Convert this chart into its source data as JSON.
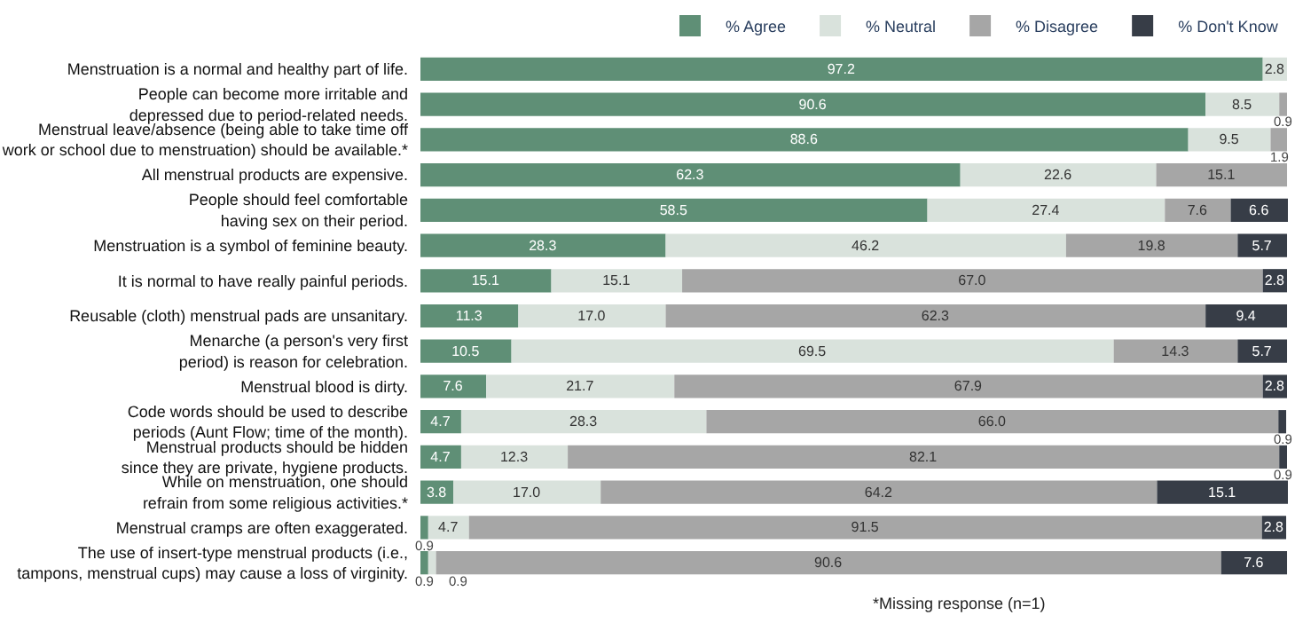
{
  "chart_data": {
    "type": "bar",
    "orientation": "horizontal",
    "stacked": true,
    "legend": "top right",
    "categories": [
      "Menstruation is a normal and healthy part of life.",
      "People can become more irritable and\ndepressed due to period-related needs.",
      "Menstrual leave/absence (being able to take time off\nwork or school due to menstruation) should be available.*",
      "All menstrual products are expensive.",
      "People should feel comfortable\nhaving sex on their period.",
      "Menstruation is a symbol of feminine beauty.",
      "It is normal to have really painful periods.",
      "Reusable (cloth) menstrual pads are unsanitary.",
      "Menarche (a person's very first\nperiod) is reason for celebration.",
      "Menstrual blood is dirty.",
      "Code words should be used to describe\nperiods (Aunt Flow; time of the month).",
      "Menstrual products should be hidden\nsince they are private, hygiene products.",
      "While on menstruation, one should\nrefrain from some religious activities.*",
      "Menstrual cramps are often exaggerated.",
      "The use of insert-type menstrual products (i.e.,\ntampons, menstrual cups) may cause a loss of virginity."
    ],
    "series": [
      {
        "name": "% Agree",
        "color": "#5f8f76",
        "values": [
          97.2,
          90.6,
          88.6,
          62.3,
          58.5,
          28.3,
          15.1,
          11.3,
          10.5,
          7.6,
          4.7,
          4.7,
          3.8,
          0.9,
          0.9
        ],
        "value_labels": [
          "97.2",
          "90.6",
          "88.6",
          "62.3",
          "58.5",
          "28.3",
          "15.1",
          "11.3",
          "10.5",
          "7.6",
          "4.7",
          "4.7",
          "3.8",
          "0.9",
          "0.9"
        ]
      },
      {
        "name": "% Neutral",
        "color": "#d9e2dc",
        "values": [
          2.8,
          8.5,
          9.5,
          22.6,
          27.4,
          46.2,
          15.1,
          17.0,
          69.5,
          21.7,
          28.3,
          12.3,
          17.0,
          4.7,
          0.9
        ],
        "value_labels": [
          "2.8",
          "8.5",
          "9.5",
          "22.6",
          "27.4",
          "46.2",
          "15.1",
          "17.0",
          "69.5",
          "21.7",
          "28.3",
          "12.3",
          "17.0",
          "4.7",
          "0.9"
        ]
      },
      {
        "name": "% Disagree",
        "color": "#a6a6a6",
        "values": [
          null,
          0.9,
          1.9,
          15.1,
          7.6,
          19.8,
          67.0,
          62.3,
          14.3,
          67.9,
          66.0,
          82.1,
          64.2,
          91.5,
          90.6
        ],
        "value_labels": [
          null,
          "0.9",
          "1.9",
          "15.1",
          "7.6",
          "19.8",
          "67.0",
          "62.3",
          "14.3",
          "67.9",
          "66.0",
          "82.1",
          "64.2",
          "91.5",
          "90.6"
        ]
      },
      {
        "name": "% Don't Know",
        "color": "#373d47",
        "values": [
          null,
          null,
          null,
          null,
          6.6,
          5.7,
          2.8,
          9.4,
          5.7,
          2.8,
          0.9,
          0.9,
          15.1,
          2.8,
          7.6
        ],
        "value_labels": [
          null,
          null,
          null,
          null,
          "6.6",
          "5.7",
          "2.8",
          "9.4",
          "5.7",
          "2.8",
          "0.9",
          "0.9",
          "15.1",
          "2.8",
          "7.6"
        ]
      }
    ],
    "annotations": [
      "*Missing response (n=1)"
    ]
  }
}
